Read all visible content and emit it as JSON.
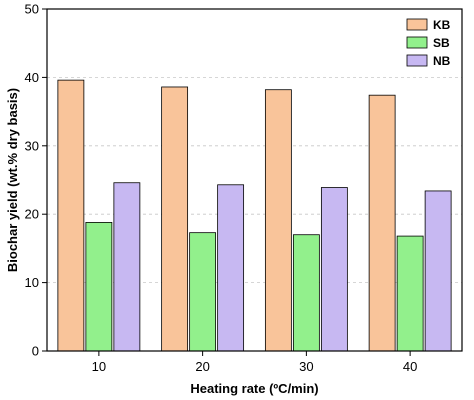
{
  "chart_data": {
    "type": "bar",
    "title": "",
    "xlabel": "Heating rate (ºC/min)",
    "ylabel": "Biochar yield (wt.% dry basis)",
    "categories": [
      "10",
      "20",
      "30",
      "40"
    ],
    "ylim": [
      0,
      50
    ],
    "yticks": [
      "0",
      "10",
      "20",
      "30",
      "40",
      "50"
    ],
    "grid": true,
    "legend_position": "top-right",
    "series": [
      {
        "name": "KB",
        "color": "#f9c49a",
        "values": [
          39.6,
          38.6,
          38.2,
          37.4
        ]
      },
      {
        "name": "SB",
        "color": "#92f08c",
        "values": [
          18.8,
          17.3,
          17.0,
          16.8
        ]
      },
      {
        "name": "NB",
        "color": "#c7b8f2",
        "values": [
          24.6,
          24.3,
          23.9,
          23.4
        ]
      }
    ]
  }
}
